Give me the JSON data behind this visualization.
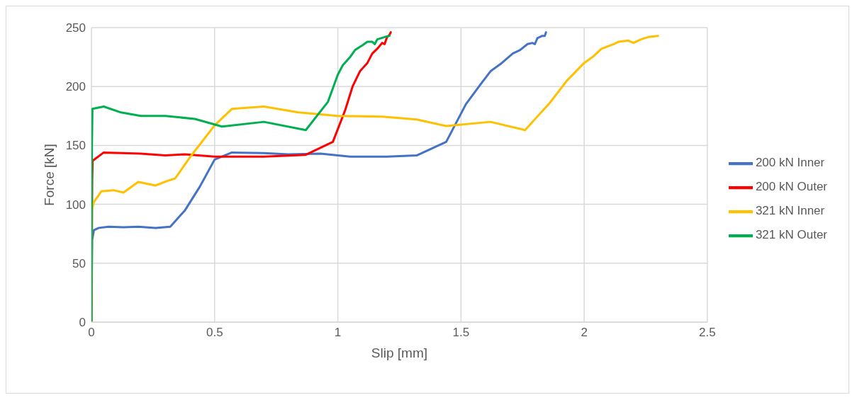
{
  "chart_data": {
    "type": "line",
    "xlabel": "Slip [mm]",
    "ylabel": "Force [kN]",
    "xlim": [
      0,
      2.5
    ],
    "xticks": [
      0,
      0.5,
      1,
      1.5,
      2,
      2.5
    ],
    "ylim": [
      0,
      250
    ],
    "yticks": [
      0,
      50,
      100,
      150,
      200,
      250
    ],
    "grid": true,
    "legend": "right",
    "marker": "none",
    "line_style": "solid",
    "series": [
      {
        "name": "200 kN Inner",
        "color": "#4472c4",
        "x": [
          0,
          0.003,
          0.01,
          0.03,
          0.07,
          0.13,
          0.19,
          0.26,
          0.32,
          0.38,
          0.44,
          0.5,
          0.57,
          0.7,
          0.8,
          0.93,
          1.05,
          1.2,
          1.32,
          1.44,
          1.52,
          1.58,
          1.62,
          1.66,
          1.71,
          1.74,
          1.77,
          1.79,
          1.8,
          1.81,
          1.83,
          1.84,
          1.845
        ],
        "values": [
          0,
          70,
          78,
          80,
          81,
          80.5,
          81,
          80,
          81,
          95,
          115,
          138,
          144,
          143.5,
          142.5,
          143,
          140.5,
          140.5,
          141.5,
          153,
          185,
          202,
          213,
          219,
          228,
          231,
          236,
          237,
          236,
          241,
          243,
          243,
          246
        ]
      },
      {
        "name": "200 kN Outer",
        "color": "#ff0000",
        "x": [
          0,
          0.003,
          0.005,
          0.05,
          0.2,
          0.3,
          0.38,
          0.5,
          0.7,
          0.87,
          0.98,
          1.03,
          1.06,
          1.09,
          1.12,
          1.14,
          1.16,
          1.18,
          1.19,
          1.2,
          1.21,
          1.215
        ],
        "values": [
          0,
          120,
          137,
          144,
          143,
          141.5,
          142.5,
          140.5,
          140.5,
          142,
          153,
          180,
          200,
          213,
          220,
          228,
          232,
          237,
          236,
          242,
          244,
          246
        ]
      },
      {
        "name": "321 kN Inner",
        "color": "#ffc000",
        "x": [
          0,
          0.002,
          0.01,
          0.04,
          0.09,
          0.13,
          0.19,
          0.26,
          0.31,
          0.34,
          0.4,
          0.5,
          0.57,
          0.7,
          0.84,
          1.0,
          1.18,
          1.32,
          1.44,
          1.62,
          1.76,
          1.86,
          1.93,
          2.0,
          2.04,
          2.07,
          2.12,
          2.14,
          2.18,
          2.2,
          2.23,
          2.26,
          2.28,
          2.3
        ],
        "values": [
          0,
          95,
          102,
          111,
          112,
          110,
          119,
          116,
          120,
          122,
          140,
          167,
          181,
          183,
          178,
          175,
          174.5,
          172,
          166.5,
          170,
          163,
          186,
          205,
          220,
          226,
          232,
          236,
          238,
          239,
          237,
          240,
          242,
          242.5,
          243
        ]
      },
      {
        "name": "321 kN Outer",
        "color": "#00b050",
        "x": [
          0,
          0.002,
          0.004,
          0.05,
          0.12,
          0.2,
          0.3,
          0.42,
          0.53,
          0.7,
          0.87,
          0.96,
          1.0,
          1.02,
          1.05,
          1.07,
          1.1,
          1.12,
          1.14,
          1.15,
          1.16,
          1.19,
          1.21
        ],
        "values": [
          0,
          150,
          181,
          183,
          178,
          175,
          175,
          172.5,
          166,
          170,
          163,
          187,
          210,
          218,
          225,
          231,
          235,
          238,
          238,
          236,
          240,
          242,
          243
        ]
      }
    ]
  }
}
